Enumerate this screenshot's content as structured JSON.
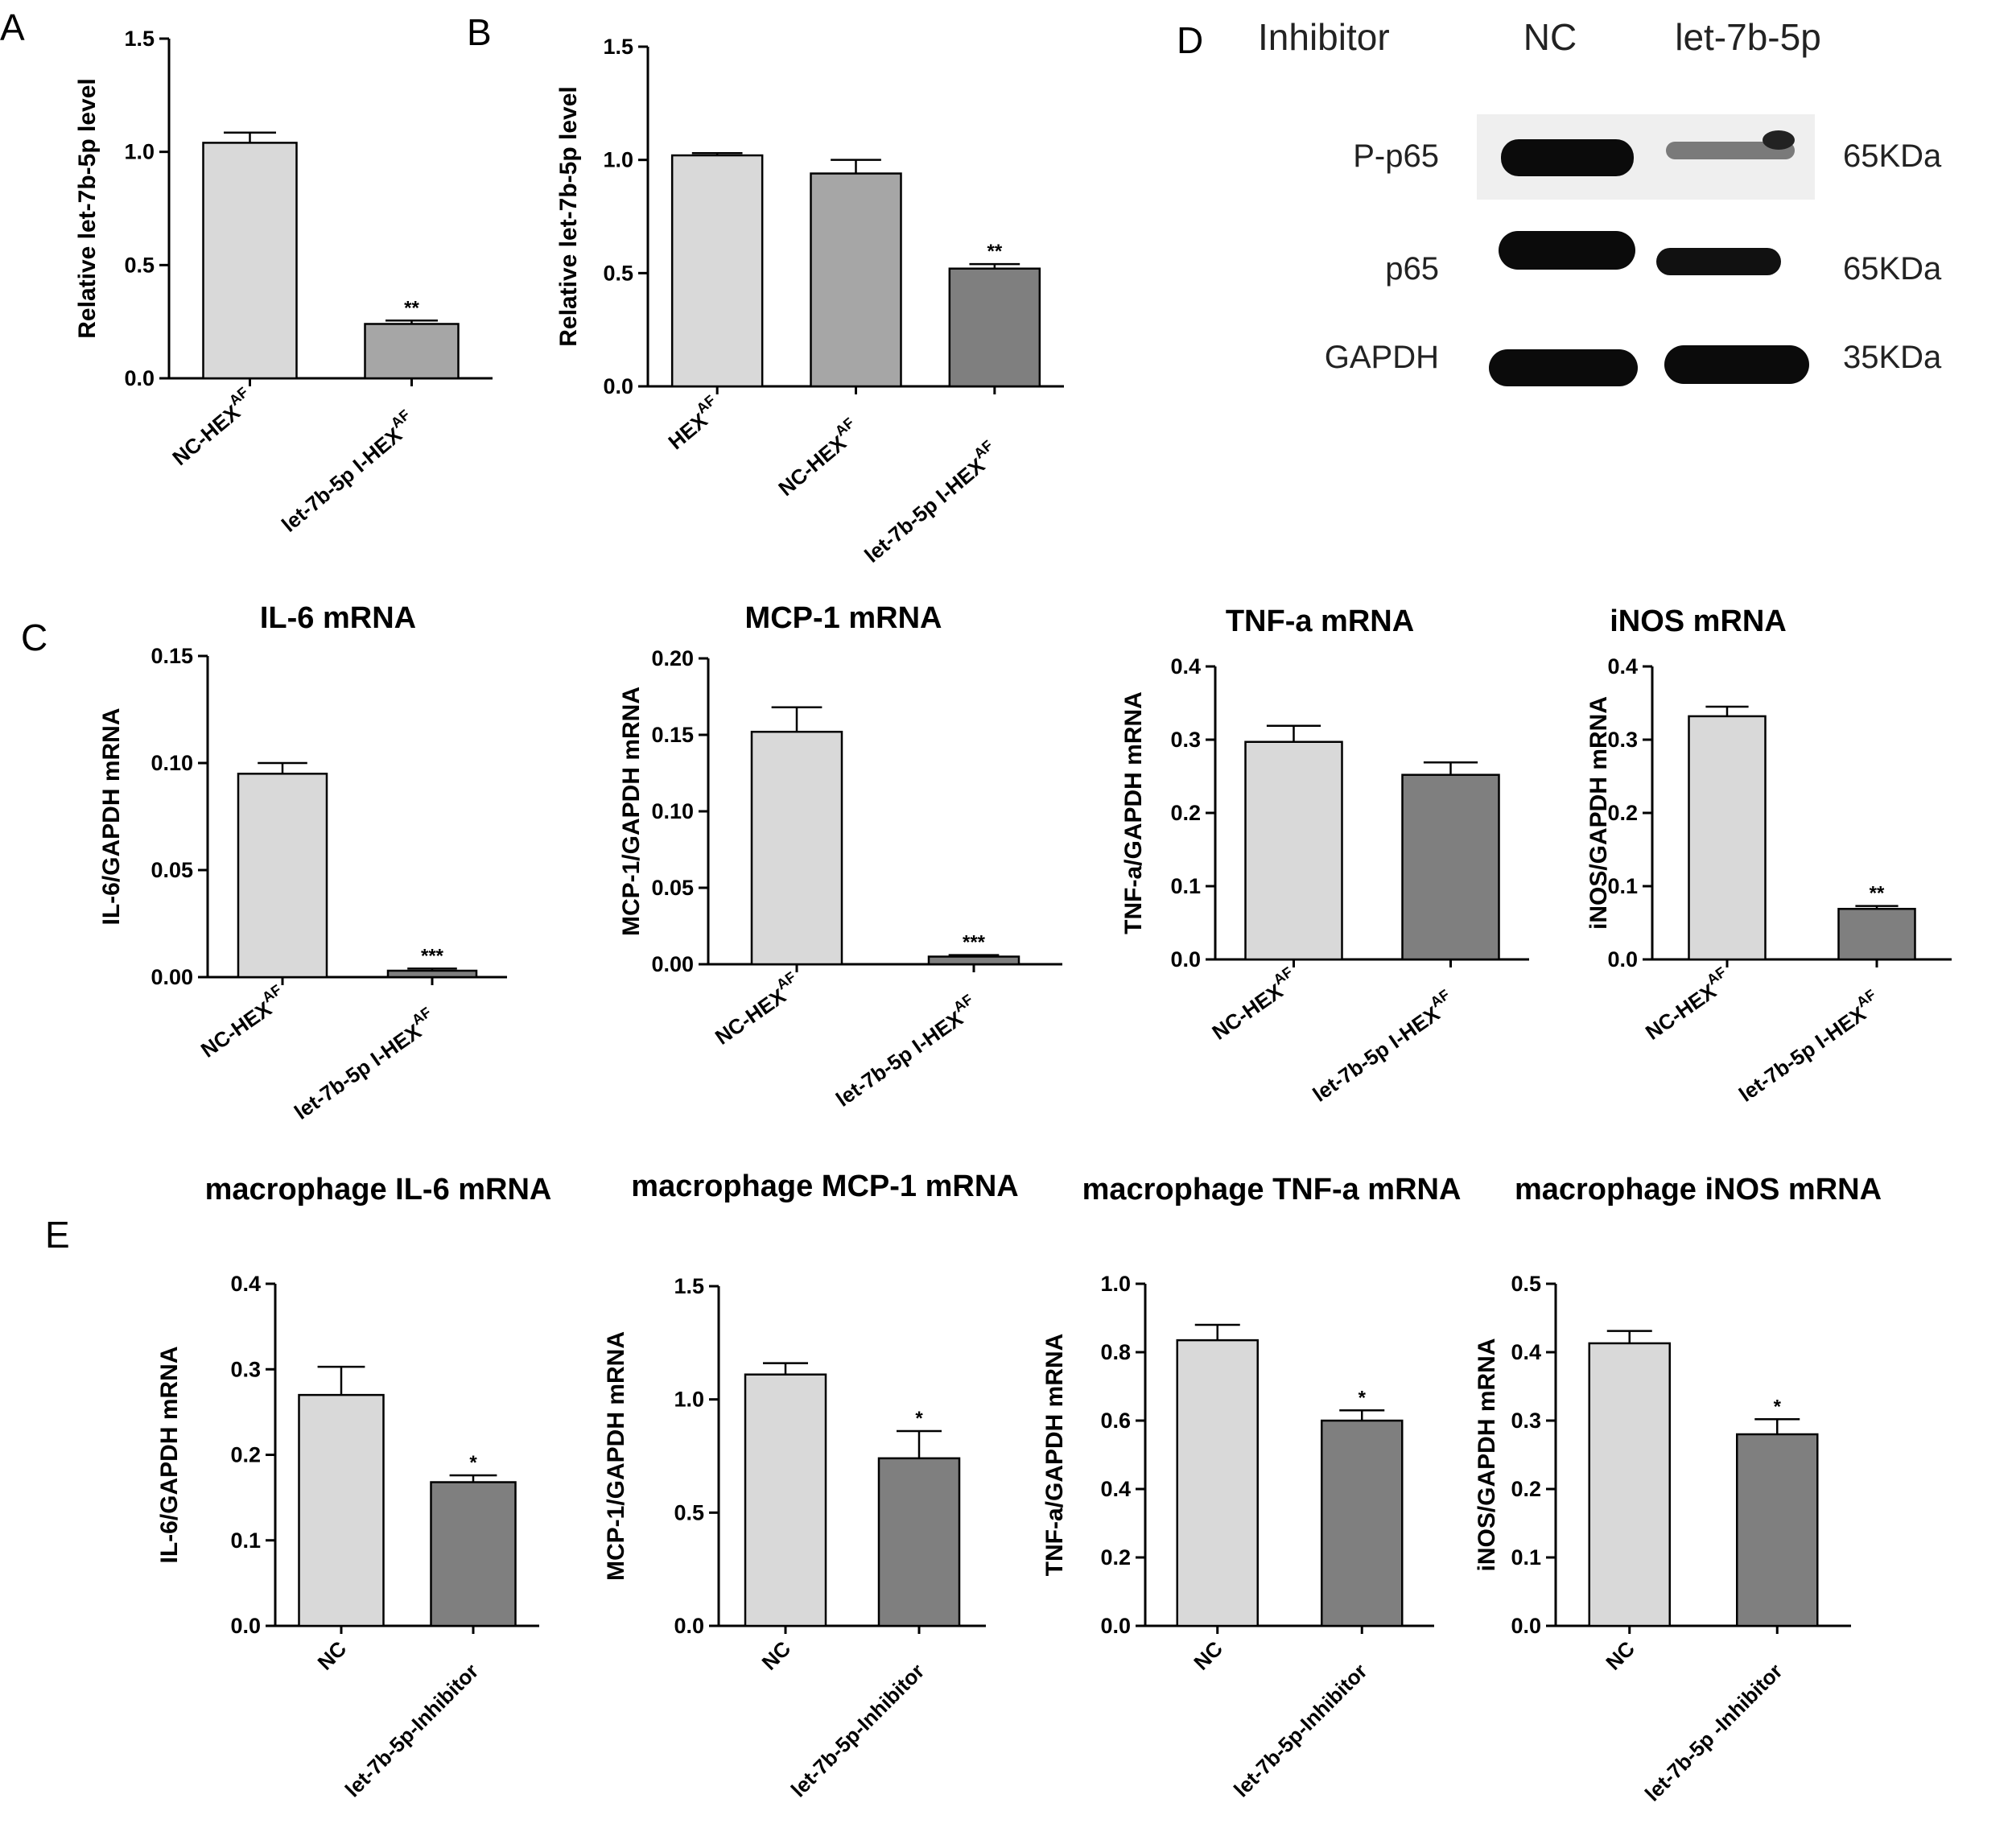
{
  "figure": {
    "panels": {
      "A": {
        "label": "A"
      },
      "B": {
        "label": "B"
      },
      "C": {
        "label": "C"
      },
      "D": {
        "label": "D"
      },
      "E": {
        "label": "E"
      }
    }
  },
  "colors": {
    "light_bar": "#d9d9d9",
    "mid_bar": "#a6a6a6",
    "dark_bar": "#7f7f7f",
    "axis": "#000000"
  },
  "western_blot": {
    "header_label": "Inhibitor",
    "lanes": [
      "NC",
      "let-7b-5p"
    ],
    "rows": [
      {
        "protein": "P-p65",
        "size": "65KDa"
      },
      {
        "protein": "p65",
        "size": "65KDa"
      },
      {
        "protein": "GAPDH",
        "size": "35KDa"
      }
    ]
  },
  "chart_data": [
    {
      "id": "A",
      "type": "bar",
      "title": "",
      "ylabel": "Relative  let-7b-5p level",
      "xlabel": "",
      "ylim": [
        0,
        1.5
      ],
      "yticks": [
        "0.0",
        "0.5",
        "1.0",
        "1.5"
      ],
      "categories": [
        {
          "base": "NC-HEX",
          "sup": "AF"
        },
        {
          "base": "let-7b-5p I-HEX",
          "sup": "AF"
        }
      ],
      "values": [
        1.04,
        0.24
      ],
      "errors": [
        0.045,
        0.015
      ],
      "colors": [
        "#d9d9d9",
        "#a6a6a6"
      ],
      "significance": [
        "",
        "**"
      ]
    },
    {
      "id": "B",
      "type": "bar",
      "title": "",
      "ylabel": "Relative  let-7b-5p level",
      "xlabel": "",
      "ylim": [
        0,
        1.5
      ],
      "yticks": [
        "0.0",
        "0.5",
        "1.0",
        "1.5"
      ],
      "categories": [
        {
          "base": "HEX",
          "sup": "AF"
        },
        {
          "base": "NC-HEX",
          "sup": "AF"
        },
        {
          "base": "let-7b-5p I-HEX",
          "sup": "AF"
        }
      ],
      "values": [
        1.02,
        0.94,
        0.52
      ],
      "errors": [
        0.01,
        0.06,
        0.02
      ],
      "colors": [
        "#d9d9d9",
        "#a6a6a6",
        "#7f7f7f"
      ],
      "significance": [
        "",
        "",
        "**"
      ]
    },
    {
      "id": "C1",
      "type": "bar",
      "title": "IL-6 mRNA",
      "ylabel": "IL-6/GAPDH mRNA",
      "xlabel": "",
      "ylim": [
        0,
        0.15
      ],
      "yticks": [
        "0.00",
        "0.05",
        "0.10",
        "0.15"
      ],
      "categories": [
        {
          "base": "NC-HEX",
          "sup": "AF"
        },
        {
          "base": "let-7b-5p I-HEX",
          "sup": "AF"
        }
      ],
      "values": [
        0.095,
        0.003
      ],
      "errors": [
        0.005,
        0.001
      ],
      "colors": [
        "#d9d9d9",
        "#7f7f7f"
      ],
      "significance": [
        "",
        "***"
      ]
    },
    {
      "id": "C2",
      "type": "bar",
      "title": "MCP-1 mRNA",
      "ylabel": "MCP-1/GAPDH mRNA",
      "xlabel": "",
      "ylim": [
        0,
        0.2
      ],
      "yticks": [
        "0.00",
        "0.05",
        "0.10",
        "0.15",
        "0.20"
      ],
      "categories": [
        {
          "base": "NC-HEX",
          "sup": "AF"
        },
        {
          "base": "let-7b-5p I-HEX",
          "sup": "AF"
        }
      ],
      "values": [
        0.152,
        0.005
      ],
      "errors": [
        0.016,
        0.001
      ],
      "colors": [
        "#d9d9d9",
        "#7f7f7f"
      ],
      "significance": [
        "",
        "***"
      ]
    },
    {
      "id": "C3",
      "type": "bar",
      "title": "TNF-a mRNA",
      "ylabel": "TNF-a/GAPDH mRNA",
      "xlabel": "",
      "ylim": [
        0,
        0.4
      ],
      "yticks": [
        "0.0",
        "0.1",
        "0.2",
        "0.3",
        "0.4"
      ],
      "categories": [
        {
          "base": "NC-HEX",
          "sup": "AF"
        },
        {
          "base": "let-7b-5p I-HEX",
          "sup": "AF"
        }
      ],
      "values": [
        0.297,
        0.252
      ],
      "errors": [
        0.022,
        0.017
      ],
      "colors": [
        "#d9d9d9",
        "#7f7f7f"
      ],
      "significance": [
        "",
        ""
      ]
    },
    {
      "id": "C4",
      "type": "bar",
      "title": "iNOS mRNA",
      "ylabel": "iNOS/GAPDH mRNA",
      "xlabel": "",
      "ylim": [
        0,
        0.4
      ],
      "yticks": [
        "0.0",
        "0.1",
        "0.2",
        "0.3",
        "0.4"
      ],
      "categories": [
        {
          "base": "NC-HEX",
          "sup": "AF"
        },
        {
          "base": "let-7b-5p I-HEX",
          "sup": "AF"
        }
      ],
      "values": [
        0.332,
        0.069
      ],
      "errors": [
        0.013,
        0.004
      ],
      "colors": [
        "#d9d9d9",
        "#7f7f7f"
      ],
      "significance": [
        "",
        "**"
      ]
    },
    {
      "id": "E1",
      "type": "bar",
      "title": "macrophage   IL-6 mRNA",
      "ylabel": "IL-6/GAPDH mRNA",
      "xlabel": "",
      "ylim": [
        0,
        0.4
      ],
      "yticks": [
        "0.0",
        "0.1",
        "0.2",
        "0.3",
        "0.4"
      ],
      "categories": [
        {
          "base": "NC",
          "sup": ""
        },
        {
          "base": "let-7b-5p-Inhibitor",
          "sup": ""
        }
      ],
      "values": [
        0.27,
        0.168
      ],
      "errors": [
        0.033,
        0.008
      ],
      "colors": [
        "#d9d9d9",
        "#7f7f7f"
      ],
      "significance": [
        "",
        "*"
      ]
    },
    {
      "id": "E2",
      "type": "bar",
      "title": "macrophage   MCP-1 mRNA",
      "ylabel": "MCP-1/GAPDH mRNA",
      "xlabel": "",
      "ylim": [
        0,
        1.5
      ],
      "yticks": [
        "0.0",
        "0.5",
        "1.0",
        "1.5"
      ],
      "categories": [
        {
          "base": "NC",
          "sup": ""
        },
        {
          "base": "let-7b-5p-Inhibitor",
          "sup": ""
        }
      ],
      "values": [
        1.11,
        0.74
      ],
      "errors": [
        0.05,
        0.12
      ],
      "colors": [
        "#d9d9d9",
        "#7f7f7f"
      ],
      "significance": [
        "",
        "*"
      ]
    },
    {
      "id": "E3",
      "type": "bar",
      "title": "macrophage   TNF-a mRNA",
      "ylabel": "TNF-a/GAPDH mRNA",
      "xlabel": "",
      "ylim": [
        0,
        1.0
      ],
      "yticks": [
        "0.0",
        "0.2",
        "0.4",
        "0.6",
        "0.8",
        "1.0"
      ],
      "categories": [
        {
          "base": "NC",
          "sup": ""
        },
        {
          "base": "let-7b-5p-Inhibitor",
          "sup": ""
        }
      ],
      "values": [
        0.835,
        0.6
      ],
      "errors": [
        0.045,
        0.03
      ],
      "colors": [
        "#d9d9d9",
        "#7f7f7f"
      ],
      "significance": [
        "",
        "*"
      ]
    },
    {
      "id": "E4",
      "type": "bar",
      "title": "macrophage   iNOS mRNA",
      "ylabel": "iNOS/GAPDH mRNA",
      "xlabel": "",
      "ylim": [
        0,
        0.5
      ],
      "yticks": [
        "0.0",
        "0.1",
        "0.2",
        "0.3",
        "0.4",
        "0.5"
      ],
      "categories": [
        {
          "base": "NC",
          "sup": ""
        },
        {
          "base": "let-7b-5p -Inhibitor",
          "sup": ""
        }
      ],
      "values": [
        0.413,
        0.28
      ],
      "errors": [
        0.018,
        0.022
      ],
      "colors": [
        "#d9d9d9",
        "#7f7f7f"
      ],
      "significance": [
        "",
        "*"
      ]
    }
  ]
}
